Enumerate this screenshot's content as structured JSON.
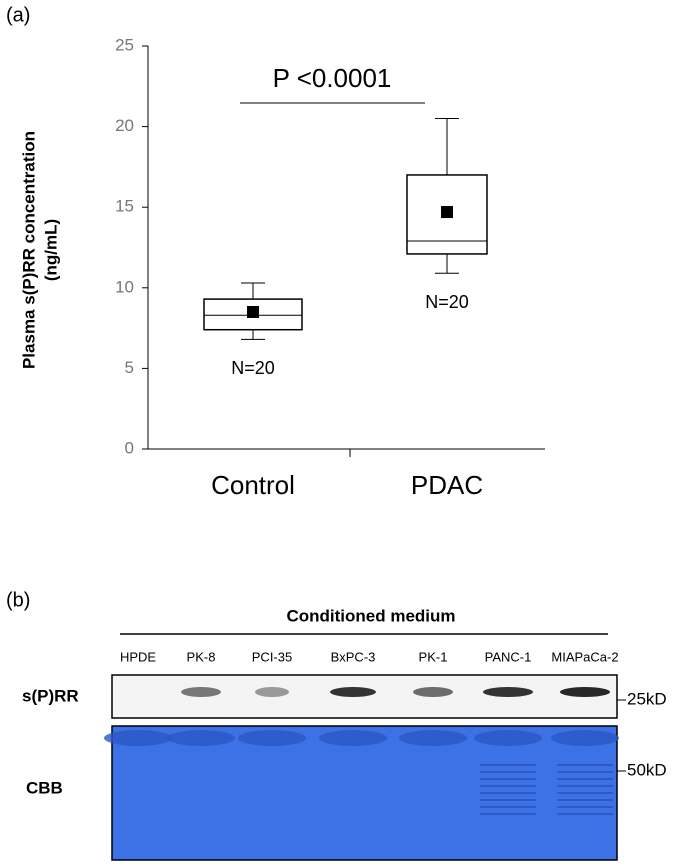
{
  "panel_a_label": "(a)",
  "chart_data": {
    "type": "box",
    "ylabel": [
      "Plasma s(P)RR concentration",
      "(ng/mL)"
    ],
    "categories": [
      "Control",
      "PDAC"
    ],
    "boxes": [
      {
        "whisker_low": 6.8,
        "q1": 7.4,
        "median": 8.3,
        "q3": 9.3,
        "whisker_high": 10.3,
        "mean": 8.5
      },
      {
        "whisker_low": 10.9,
        "q1": 12.1,
        "median": 12.9,
        "q3": 17.0,
        "whisker_high": 20.5,
        "mean": 14.7
      }
    ],
    "n_labels": [
      "N=20",
      "N=20"
    ],
    "annotation": "P <0.0001",
    "color": "#000000",
    "ylim": [
      0,
      25
    ],
    "yticks": [
      0,
      5,
      10,
      15,
      20,
      25
    ]
  },
  "panel_b": {
    "label": "(b)",
    "header": "Conditioned medium",
    "lanes": [
      "HPDE",
      "PK-8",
      "PCI-35",
      "BxPC-3",
      "PK-1",
      "PANC-1",
      "MIAPaCa-2"
    ],
    "rows": [
      "s(P)RR",
      "CBB"
    ],
    "markers": [
      "25kD",
      "50kD"
    ]
  }
}
